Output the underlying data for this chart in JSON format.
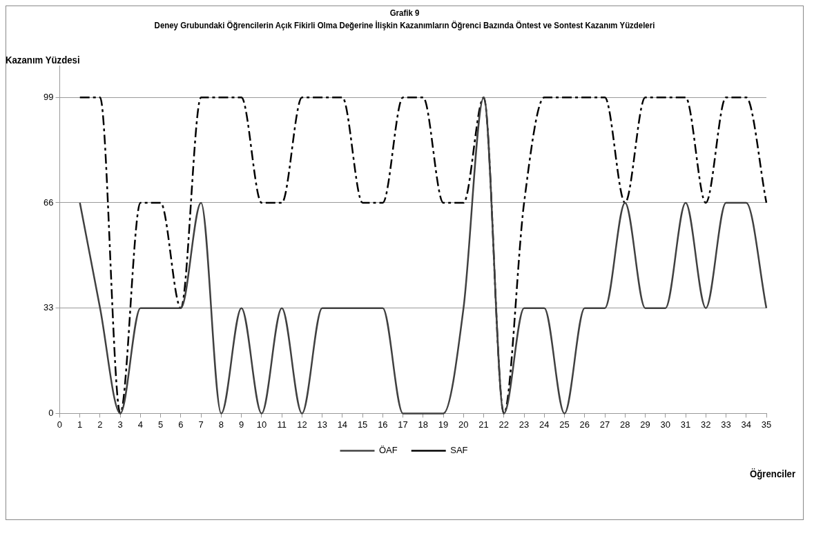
{
  "chart_data": {
    "type": "line",
    "title": "Grafik 9",
    "subtitle": "Deney Grubundaki Öğrencilerin Açık Fikirli Olma Değerine İlişkin Kazanımların Öğrenci Bazında Öntest ve Sontest Kazanım Yüzdeleri",
    "xlabel": "Öğrenciler",
    "ylabel": "Kazanım Yüzdesi",
    "x": [
      1,
      2,
      3,
      4,
      5,
      6,
      7,
      8,
      9,
      10,
      11,
      12,
      13,
      14,
      15,
      16,
      17,
      18,
      19,
      20,
      21,
      22,
      23,
      24,
      25,
      26,
      27,
      28,
      29,
      30,
      31,
      32,
      33,
      34,
      35
    ],
    "series": [
      {
        "name": "ÖAF",
        "color": "#404040",
        "line_style": "solid",
        "values": [
          66,
          33,
          0,
          33,
          33,
          33,
          66,
          0,
          33,
          0,
          33,
          0,
          33,
          33,
          33,
          33,
          0,
          0,
          0,
          33,
          99,
          0,
          33,
          33,
          0,
          33,
          33,
          66,
          33,
          33,
          66,
          33,
          66,
          66,
          33
        ]
      },
      {
        "name": "SAF",
        "color": "#000000",
        "line_style": "dashed",
        "values": [
          99,
          99,
          0,
          66,
          66,
          33,
          99,
          99,
          99,
          66,
          66,
          99,
          99,
          99,
          66,
          66,
          99,
          99,
          66,
          66,
          99,
          0,
          66,
          99,
          99,
          99,
          99,
          66,
          99,
          99,
          99,
          66,
          99,
          99,
          66
        ]
      }
    ],
    "xlim": [
      0,
      35
    ],
    "xticks": [
      0,
      1,
      2,
      3,
      4,
      5,
      6,
      7,
      8,
      9,
      10,
      11,
      12,
      13,
      14,
      15,
      16,
      17,
      18,
      19,
      20,
      21,
      22,
      23,
      24,
      25,
      26,
      27,
      28,
      29,
      30,
      31,
      32,
      33,
      34,
      35
    ],
    "ylim": [
      0,
      109
    ],
    "yticks": [
      0,
      33,
      66,
      99
    ],
    "grid": "y",
    "legend": "bottom",
    "marker": "none"
  }
}
